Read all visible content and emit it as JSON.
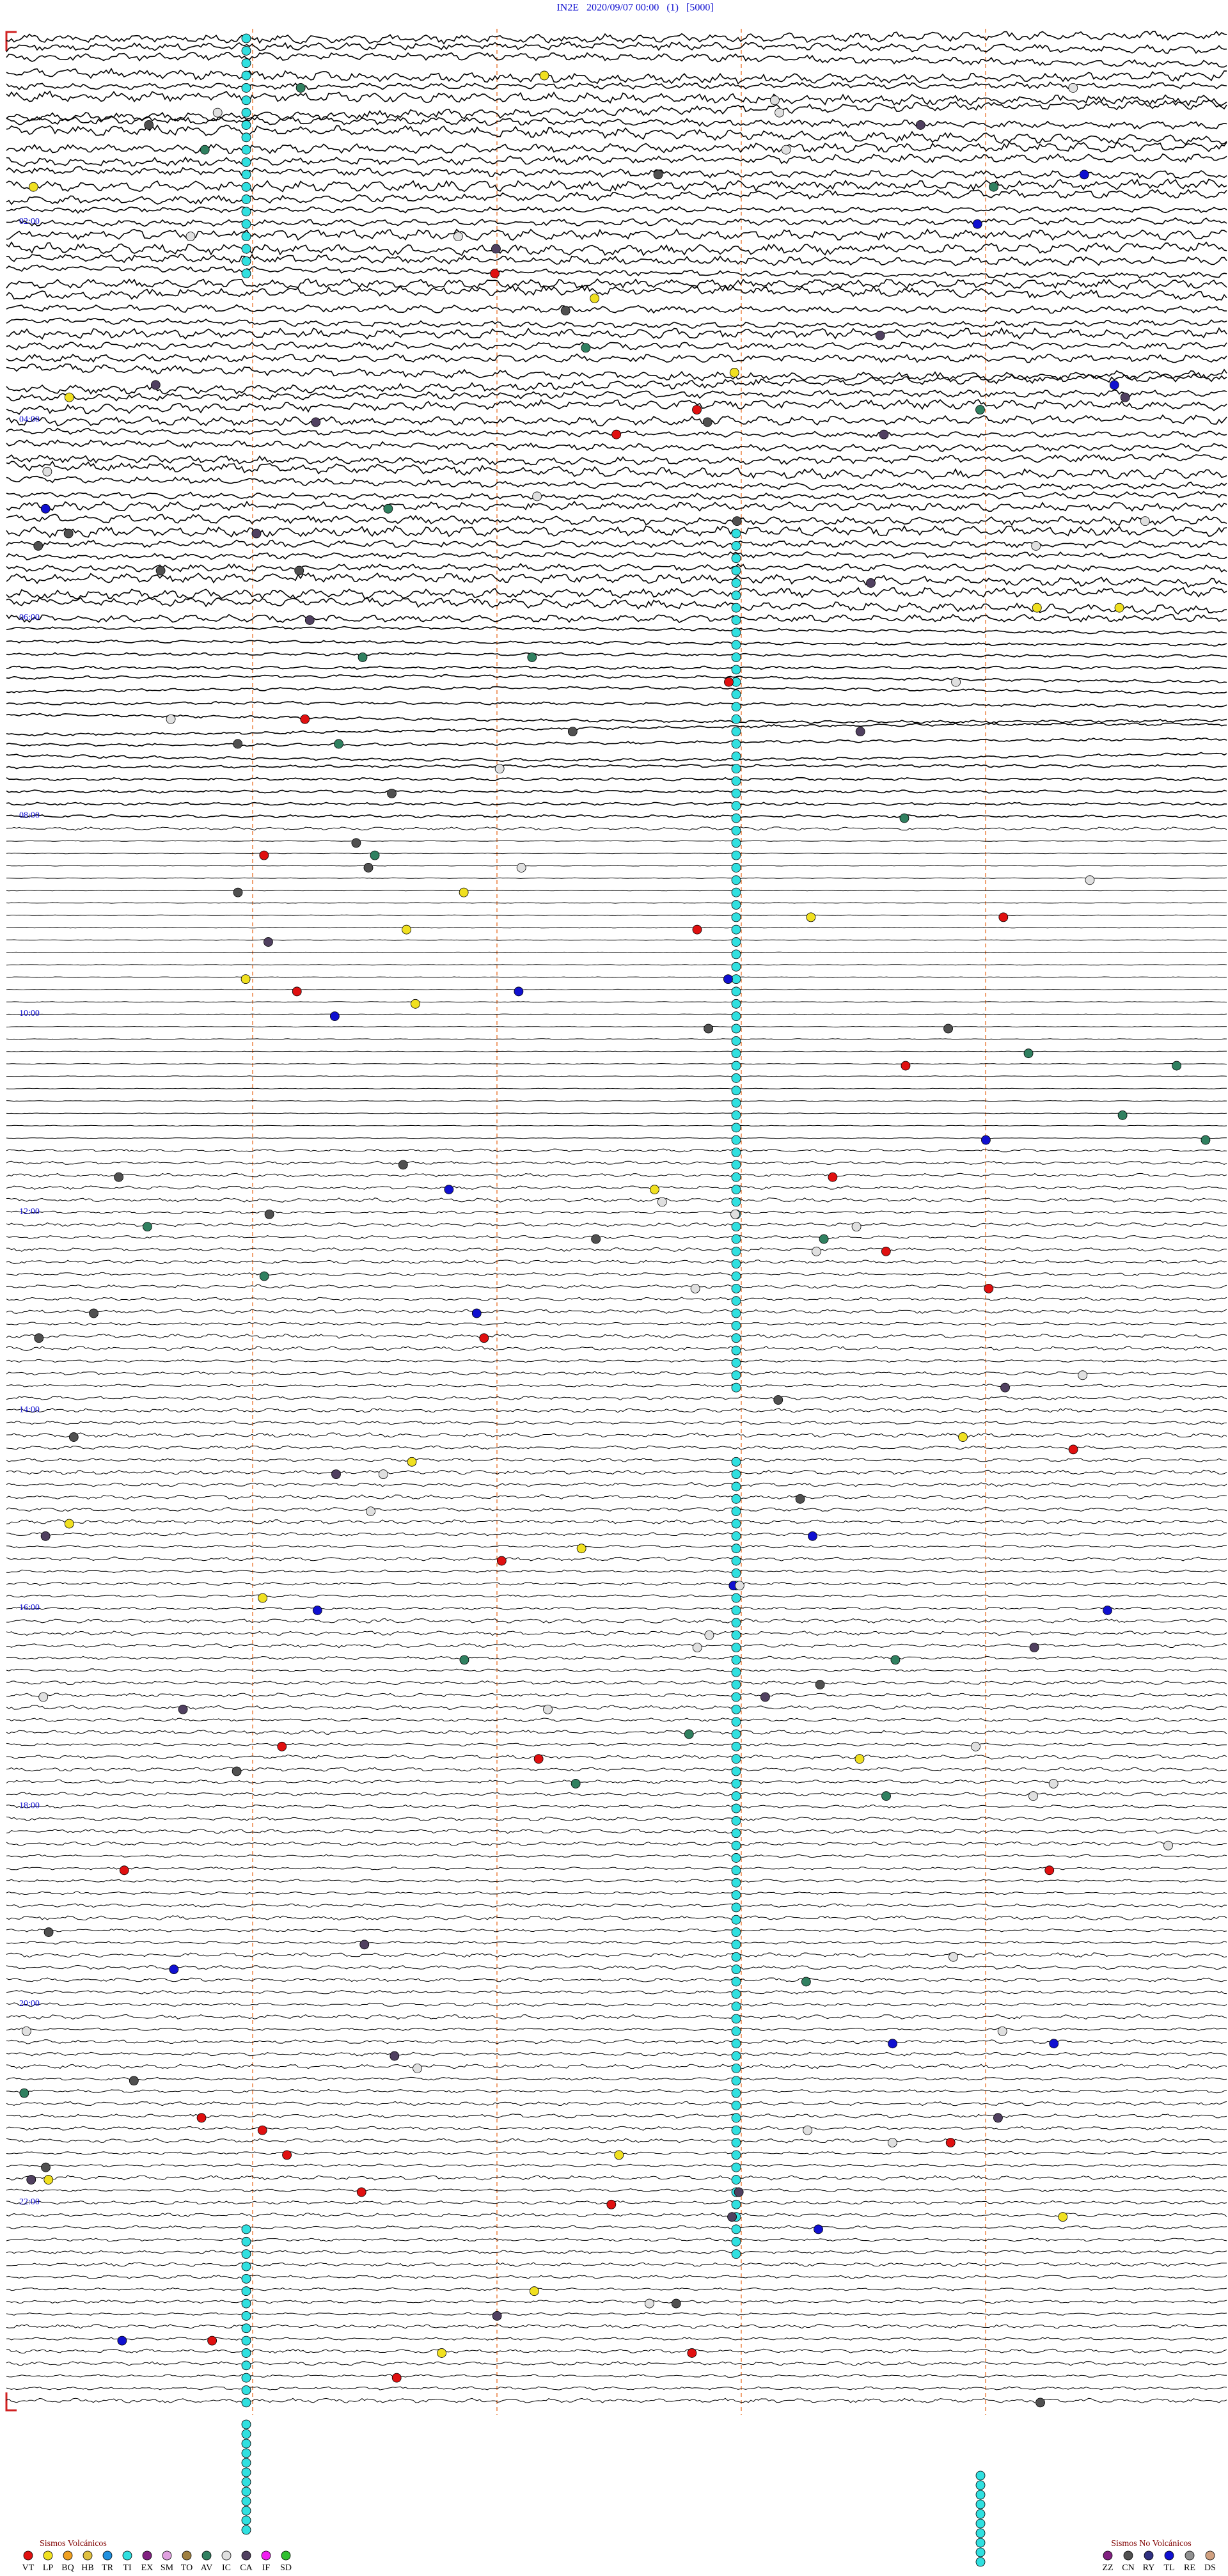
{
  "header": {
    "title": "IN2E   2020/09/07 00:00   (1)   [5000]"
  },
  "hour_labels": [
    "02:00",
    "04:00",
    "06:00",
    "08:00",
    "10:00",
    "12:00",
    "14:00",
    "16:00",
    "18:00",
    "20:00",
    "22:00"
  ],
  "legend_volcanic": {
    "title": "Sismos Volcánicos",
    "items": [
      {
        "code": "VT",
        "color": "#e01010"
      },
      {
        "code": "LP",
        "color": "#f0e020"
      },
      {
        "code": "BQ",
        "color": "#f0a020"
      },
      {
        "code": "HB",
        "color": "#e0c040"
      },
      {
        "code": "TR",
        "color": "#2090e0"
      },
      {
        "code": "TI",
        "color": "#30e0e0"
      },
      {
        "code": "EX",
        "color": "#802080"
      },
      {
        "code": "SM",
        "color": "#e0a0e0"
      },
      {
        "code": "TO",
        "color": "#a08040"
      },
      {
        "code": "AV",
        "color": "#308060"
      },
      {
        "code": "IC",
        "color": "#e0e0e0"
      },
      {
        "code": "CA",
        "color": "#504060"
      },
      {
        "code": "IF",
        "color": "#f020f0"
      },
      {
        "code": "SD",
        "color": "#30c030"
      }
    ]
  },
  "legend_nonvolcanic": {
    "title": "Sismos No Volcánicos",
    "items": [
      {
        "code": "ZZ",
        "color": "#802080"
      },
      {
        "code": "CN",
        "color": "#505050"
      },
      {
        "code": "RY",
        "color": "#303080"
      },
      {
        "code": "TL",
        "color": "#1010d0"
      },
      {
        "code": "RE",
        "color": "#909090"
      },
      {
        "code": "DS",
        "color": "#d0a080"
      }
    ]
  }
}
